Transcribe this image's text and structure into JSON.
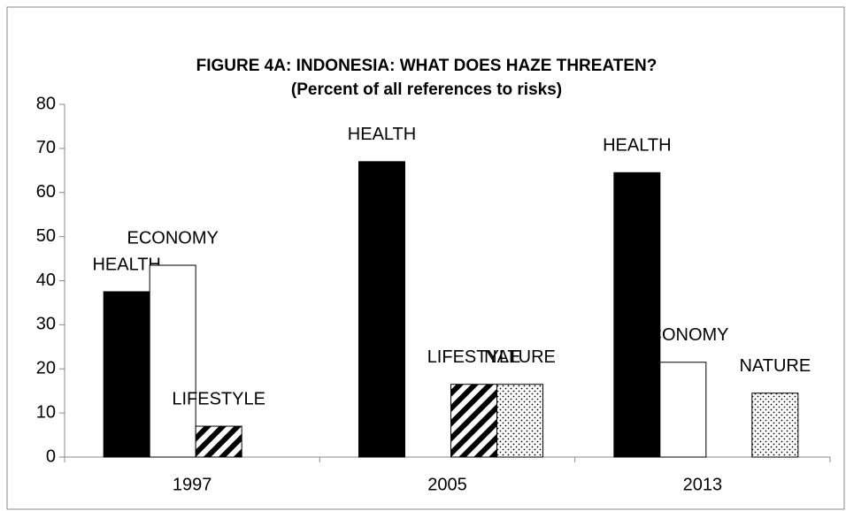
{
  "chart_data": {
    "type": "bar",
    "title": "FIGURE 4A: INDONESIA:  WHAT DOES HAZE THREATEN?",
    "subtitle": "(Percent of all references to risks)",
    "categories": [
      "1997",
      "2005",
      "2013"
    ],
    "series": [
      {
        "name": "HEALTH",
        "color": "#000000",
        "pattern": "solid",
        "values": [
          37.5,
          67,
          64.5
        ]
      },
      {
        "name": "ECONOMY",
        "color": "#ffffff",
        "pattern": "solid",
        "values": [
          43.5,
          null,
          21.5
        ]
      },
      {
        "name": "LIFESTYLE",
        "color": "#000000",
        "pattern": "diagonal",
        "values": [
          7,
          16.5,
          null
        ]
      },
      {
        "name": "NATURE",
        "color": "#000000",
        "pattern": "dots",
        "values": [
          null,
          16.5,
          14.5
        ]
      }
    ],
    "ylim": [
      0,
      80
    ],
    "yticks": [
      0,
      10,
      20,
      30,
      40,
      50,
      60,
      70,
      80
    ],
    "grid": false
  }
}
